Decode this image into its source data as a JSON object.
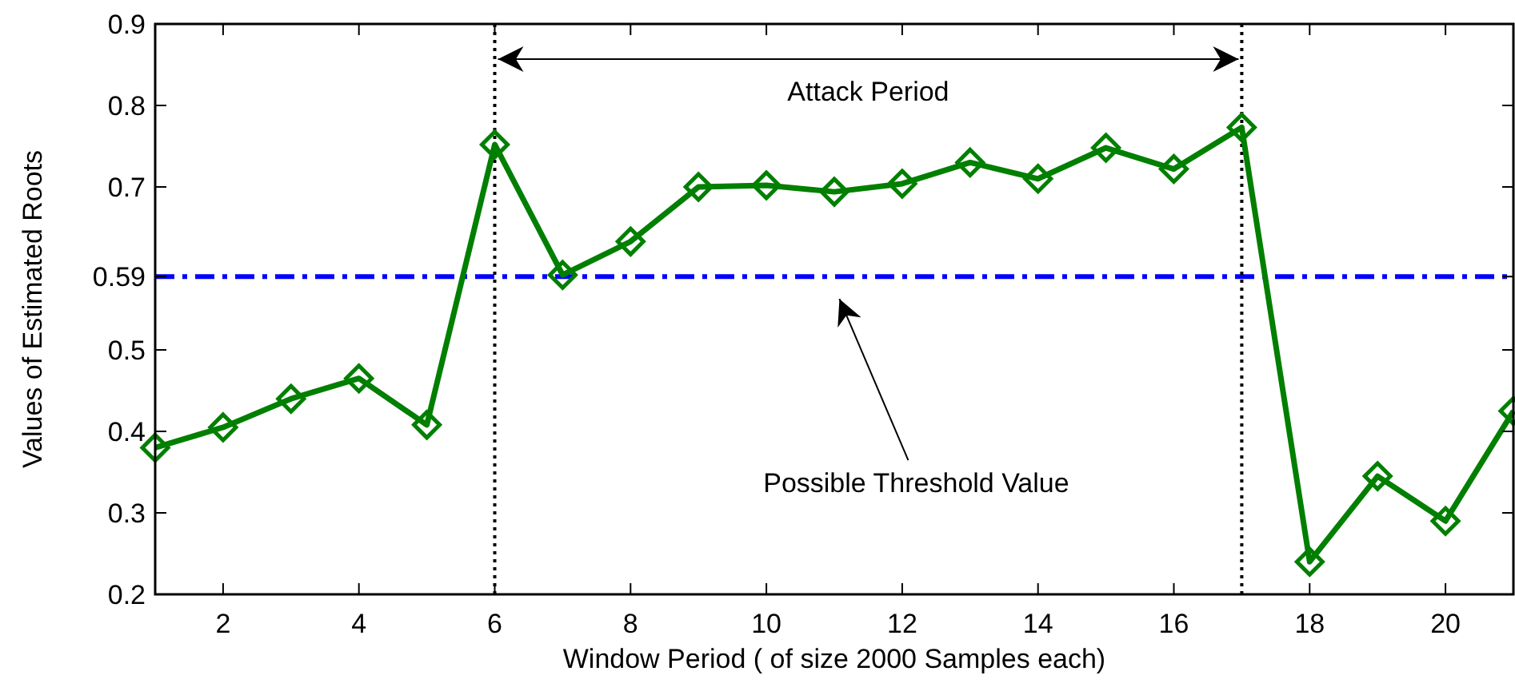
{
  "chart_data": {
    "type": "line",
    "xlabel": "Window Period ( of size 2000 Samples each)",
    "ylabel": "Values of Estimated Roots",
    "x": [
      1,
      2,
      3,
      4,
      5,
      6,
      7,
      8,
      9,
      10,
      11,
      12,
      13,
      14,
      15,
      16,
      17,
      18,
      19,
      20,
      21
    ],
    "series": [
      {
        "color": "#007f00",
        "values": [
          0.38,
          0.405,
          0.44,
          0.465,
          0.408,
          0.752,
          0.592,
          0.633,
          0.7,
          0.702,
          0.694,
          0.704,
          0.73,
          0.71,
          0.748,
          0.722,
          0.773,
          0.24,
          0.345,
          0.29,
          0.425
        ]
      }
    ],
    "xlim": [
      1,
      21
    ],
    "xticks": [
      2,
      4,
      6,
      8,
      10,
      12,
      14,
      16,
      18,
      20
    ],
    "ylim": [
      0.2,
      0.9
    ],
    "yticks": [
      0.2,
      0.3,
      0.4,
      0.5,
      0.59,
      0.7,
      0.8,
      0.9
    ],
    "marker": "diamond",
    "line_style": "solid",
    "grid": false,
    "ref_lines": [
      {
        "axis": "y",
        "value": 0.59,
        "color": "#0000ff",
        "line_style": "dashdot"
      },
      {
        "axis": "x",
        "value": 6,
        "color": "#000000",
        "line_style": "dotted"
      },
      {
        "axis": "x",
        "value": 17,
        "color": "#000000",
        "line_style": "dotted"
      }
    ],
    "annotations": [
      "Attack Period",
      "Possible Threshold Value"
    ]
  }
}
